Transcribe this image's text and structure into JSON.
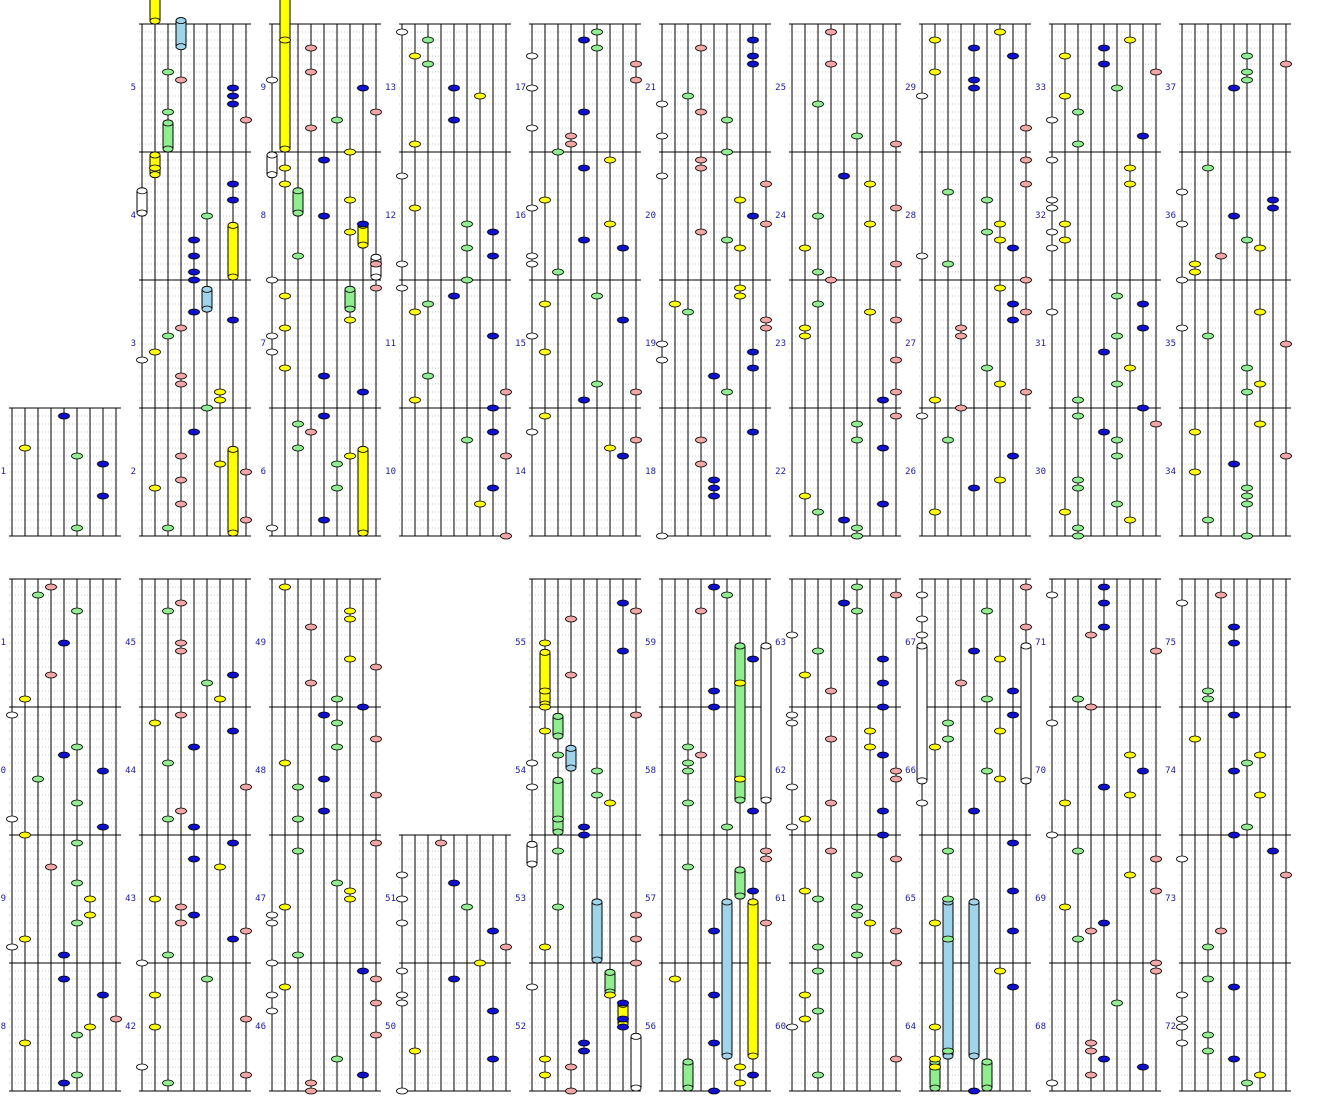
{
  "chart_data": {
    "type": "note-chart",
    "lanes_per_column": 9,
    "colors": {
      "white": "#ffffff",
      "yellow": "#ffff00",
      "green": "#90ee90",
      "pink": "#f4a6a6",
      "blue": "#1010d0",
      "light_blue": "#a0d4ea",
      "lane_line": "#000000",
      "beat_line": "#c8c8c8",
      "measure_number": "#1a1aa8"
    },
    "rows": [
      {
        "columns": [
          {
            "measures": [
              "1"
            ]
          },
          {
            "measures": [
              "2",
              "3",
              "4",
              "5"
            ]
          },
          {
            "measures": [
              "6",
              "7",
              "8",
              "9"
            ]
          },
          {
            "measures": [
              "10",
              "11",
              "12",
              "13"
            ]
          },
          {
            "measures": [
              "14",
              "15",
              "16",
              "17"
            ]
          },
          {
            "measures": [
              "18",
              "19",
              "20",
              "21"
            ]
          },
          {
            "measures": [
              "22",
              "23",
              "24",
              "25"
            ]
          },
          {
            "measures": [
              "26",
              "27",
              "28",
              "29"
            ]
          },
          {
            "measures": [
              "30",
              "31",
              "32",
              "33"
            ]
          },
          {
            "measures": [
              "34",
              "35",
              "36",
              "37"
            ]
          }
        ]
      },
      {
        "columns": [
          {
            "measures": [
              "38",
              "39",
              "40",
              "41"
            ]
          },
          {
            "measures": [
              "42",
              "43",
              "44",
              "45"
            ]
          },
          {
            "measures": [
              "46",
              "47",
              "48",
              "49"
            ]
          },
          {
            "measures": [
              "50",
              "51"
            ]
          },
          {
            "measures": [
              "52",
              "53",
              "54",
              "55"
            ]
          },
          {
            "measures": [
              "56",
              "57",
              "58",
              "59"
            ]
          },
          {
            "measures": [
              "60",
              "61",
              "62",
              "63"
            ]
          },
          {
            "measures": [
              "64",
              "65",
              "66",
              "67"
            ]
          },
          {
            "measures": [
              "68",
              "69",
              "70",
              "71"
            ]
          },
          {
            "measures": [
              "72",
              "73",
              "74",
              "75"
            ]
          }
        ]
      }
    ],
    "long_notes": [
      {
        "measure_col": 1,
        "row": 0,
        "lane": 1,
        "color": "yellow",
        "from": 4.0,
        "to": 4.95
      },
      {
        "measure_col": 1,
        "row": 0,
        "lane": 3,
        "color": "light_blue",
        "from": 3.8,
        "to": 4.05
      },
      {
        "measure_col": 1,
        "row": 0,
        "lane": 2,
        "color": "green",
        "from": 3.0,
        "to": 3.25
      },
      {
        "measure_col": 1,
        "row": 0,
        "lane": 1,
        "color": "yellow",
        "from": 2.8,
        "to": 3.0
      },
      {
        "measure_col": 1,
        "row": 0,
        "lane": 0,
        "color": "white",
        "from": 2.5,
        "to": 2.72
      },
      {
        "measure_col": 1,
        "row": 0,
        "lane": 7,
        "color": "yellow",
        "from": 2.0,
        "to": 2.45
      },
      {
        "measure_col": 1,
        "row": 0,
        "lane": 5,
        "color": "light_blue",
        "from": 1.75,
        "to": 1.95
      },
      {
        "measure_col": 1,
        "row": 0,
        "lane": 7,
        "color": "yellow",
        "from": 0.0,
        "to": 0.7
      },
      {
        "measure_col": 2,
        "row": 0,
        "lane": 1,
        "color": "yellow",
        "from": 3.0,
        "to": 4.5
      },
      {
        "measure_col": 2,
        "row": 0,
        "lane": 0,
        "color": "white",
        "from": 2.8,
        "to": 3.0
      },
      {
        "measure_col": 2,
        "row": 0,
        "lane": 2,
        "color": "green",
        "from": 2.5,
        "to": 2.72
      },
      {
        "measure_col": 2,
        "row": 0,
        "lane": 7,
        "color": "yellow",
        "from": 2.25,
        "to": 2.45
      },
      {
        "measure_col": 2,
        "row": 0,
        "lane": 8,
        "color": "white",
        "from": 2.0,
        "to": 2.2
      },
      {
        "measure_col": 2,
        "row": 0,
        "lane": 6,
        "color": "green",
        "from": 1.75,
        "to": 1.95
      },
      {
        "measure_col": 2,
        "row": 0,
        "lane": 7,
        "color": "yellow",
        "from": 0.0,
        "to": 0.7
      },
      {
        "measure_col": 4,
        "row": 1,
        "lane": 1,
        "color": "yellow",
        "from": 3.0,
        "to": 3.45
      },
      {
        "measure_col": 4,
        "row": 1,
        "lane": 2,
        "color": "green",
        "from": 2.75,
        "to": 2.95
      },
      {
        "measure_col": 4,
        "row": 1,
        "lane": 3,
        "color": "light_blue",
        "from": 2.5,
        "to": 2.7
      },
      {
        "measure_col": 4,
        "row": 1,
        "lane": 2,
        "color": "green",
        "from": 2.0,
        "to": 2.45
      },
      {
        "measure_col": 4,
        "row": 1,
        "lane": 0,
        "color": "white",
        "from": 1.75,
        "to": 1.95
      },
      {
        "measure_col": 4,
        "row": 1,
        "lane": 5,
        "color": "light_blue",
        "from": 1.0,
        "to": 1.5
      },
      {
        "measure_col": 4,
        "row": 1,
        "lane": 6,
        "color": "green",
        "from": 0.75,
        "to": 0.95
      },
      {
        "measure_col": 4,
        "row": 1,
        "lane": 7,
        "color": "yellow",
        "from": 0.5,
        "to": 0.7
      },
      {
        "measure_col": 4,
        "row": 1,
        "lane": 8,
        "color": "white",
        "from": 0.0,
        "to": 0.45
      },
      {
        "measure_col": 5,
        "row": 1,
        "lane": 6,
        "color": "green",
        "from": 2.25,
        "to": 3.5
      },
      {
        "measure_col": 5,
        "row": 1,
        "lane": 8,
        "color": "white",
        "from": 2.25,
        "to": 3.5
      },
      {
        "measure_col": 5,
        "row": 1,
        "lane": 6,
        "color": "green",
        "from": 1.5,
        "to": 1.75
      },
      {
        "measure_col": 5,
        "row": 1,
        "lane": 5,
        "color": "light_blue",
        "from": 0.25,
        "to": 1.5
      },
      {
        "measure_col": 5,
        "row": 1,
        "lane": 7,
        "color": "yellow",
        "from": 0.25,
        "to": 1.5
      },
      {
        "measure_col": 5,
        "row": 1,
        "lane": 2,
        "color": "green",
        "from": 0.0,
        "to": 0.25
      },
      {
        "measure_col": 7,
        "row": 1,
        "lane": 0,
        "color": "white",
        "from": 2.4,
        "to": 3.5
      },
      {
        "measure_col": 7,
        "row": 1,
        "lane": 8,
        "color": "white",
        "from": 2.4,
        "to": 3.5
      },
      {
        "measure_col": 7,
        "row": 1,
        "lane": 2,
        "color": "light_blue",
        "from": 0.25,
        "to": 1.5
      },
      {
        "measure_col": 7,
        "row": 1,
        "lane": 4,
        "color": "light_blue",
        "from": 0.25,
        "to": 1.5
      },
      {
        "measure_col": 7,
        "row": 1,
        "lane": 1,
        "color": "green",
        "from": 0.0,
        "to": 0.25
      },
      {
        "measure_col": 7,
        "row": 1,
        "lane": 5,
        "color": "green",
        "from": 0.0,
        "to": 0.25
      }
    ]
  }
}
